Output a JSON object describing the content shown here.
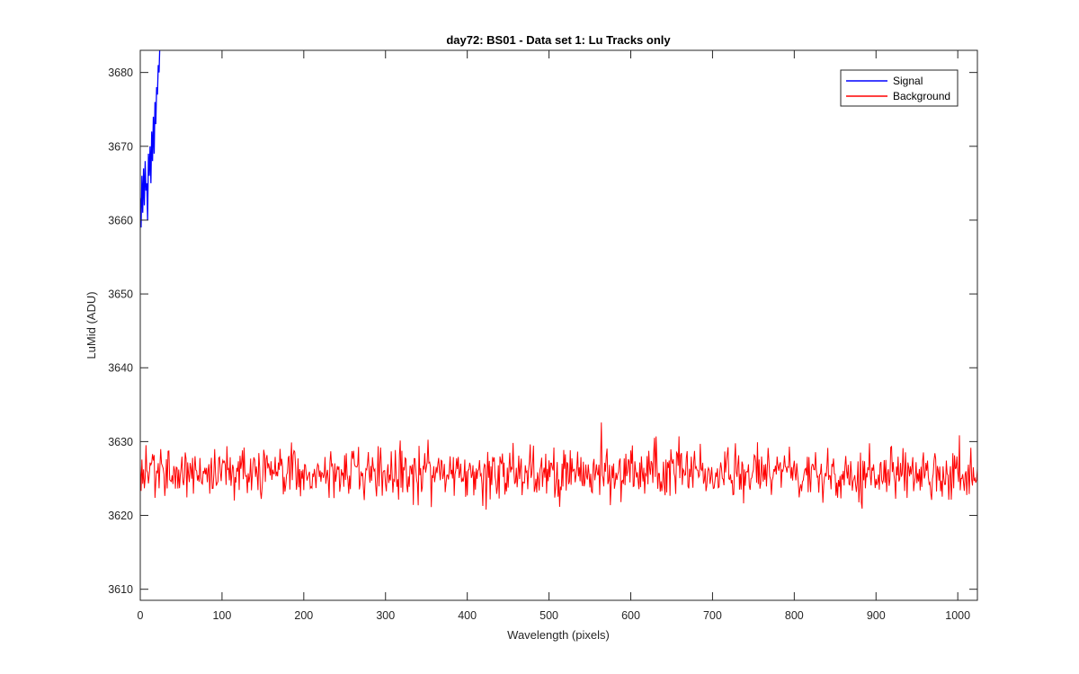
{
  "chart_data": {
    "type": "line",
    "title": "day72: BS01 - Data set 1: Lu Tracks only",
    "xlabel": "Wavelength (pixels)",
    "ylabel": "LuMid (ADU)",
    "xlim": [
      0,
      1024
    ],
    "ylim": [
      3608.5,
      3683
    ],
    "xticks": [
      0,
      100,
      200,
      300,
      400,
      500,
      600,
      700,
      800,
      900,
      1000
    ],
    "yticks": [
      3610,
      3620,
      3630,
      3640,
      3650,
      3660,
      3670,
      3680
    ],
    "grid": false,
    "legend_position": "top-right",
    "series": [
      {
        "name": "Signal",
        "color": "#0000ff",
        "x": [
          0,
          1,
          2,
          3,
          4,
          5,
          6,
          7,
          8,
          9,
          10,
          11,
          12,
          13,
          14,
          15,
          16,
          17,
          18,
          19,
          20,
          21,
          22,
          23,
          24
        ],
        "y": [
          3663,
          3659,
          3666,
          3661,
          3667,
          3662,
          3668,
          3664,
          3665,
          3660,
          3669,
          3666,
          3670,
          3665,
          3672,
          3668,
          3674,
          3669,
          3676,
          3673,
          3678,
          3677,
          3681,
          3680,
          3684
        ]
      },
      {
        "name": "Background",
        "color": "#ff0000",
        "x_range": [
          0,
          1024
        ],
        "y_mean": 3625.8,
        "y_spread": 3.2,
        "y_min": 3619,
        "y_max": 3633
      }
    ]
  }
}
